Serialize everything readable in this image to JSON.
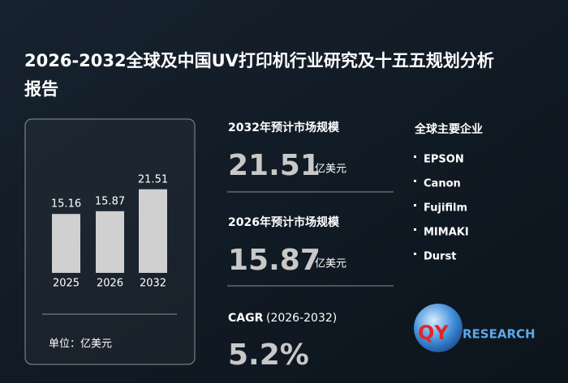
{
  "title": "2026-2032全球及中国UV打印机行业研究及十五五规划分析报告",
  "chart_data": {
    "type": "bar",
    "categories": [
      "2025",
      "2026",
      "2032"
    ],
    "values": [
      15.16,
      15.87,
      21.51
    ],
    "color": "#d0d0d0",
    "unit": "单位：亿美元"
  },
  "stats": [
    {
      "label": "2032年预计市场规模",
      "value": 21.51,
      "unit": "亿美元"
    },
    {
      "label": "2026年预计市场规模",
      "value": 15.87,
      "unit": "亿美元"
    }
  ],
  "cagr": {
    "label": "CAGR",
    "period": "(2026-2032)",
    "value": "5.2%"
  },
  "companies": {
    "title": "全球主要企业",
    "items": [
      "EPSON",
      "Canon",
      "Fujifilm",
      "MIMAKI",
      "Durst"
    ]
  },
  "logo": {
    "left": "QY",
    "right": "RESEARCH"
  }
}
